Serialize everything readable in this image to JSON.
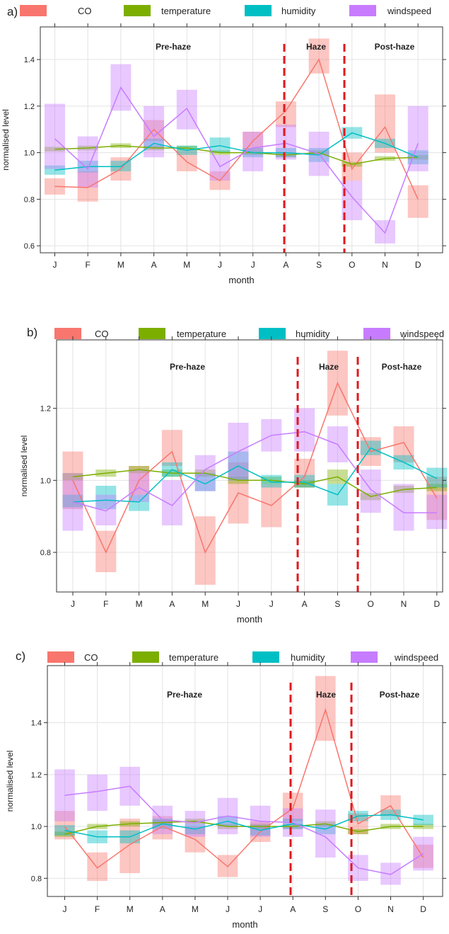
{
  "legend": [
    {
      "name": "CO",
      "color": "#F8766D"
    },
    {
      "name": "temperature",
      "color": "#7CAE00"
    },
    {
      "name": "humidity",
      "color": "#00BFC4"
    },
    {
      "name": "windspeed",
      "color": "#C77CFF"
    }
  ],
  "chart_data": [
    {
      "type": "line",
      "panel_label": "a)",
      "xlabel": "month",
      "ylabel": "normalised level",
      "categories": [
        "J",
        "F",
        "M",
        "A",
        "M",
        "J",
        "J",
        "A",
        "S",
        "O",
        "N",
        "D"
      ],
      "ylim": [
        0.57,
        1.54
      ],
      "yticks": [
        "0.6",
        "0.8",
        "1.0",
        "1.2",
        "1.4"
      ],
      "ytick_values": [
        0.6,
        0.8,
        1.0,
        1.2,
        1.4
      ],
      "grid": true,
      "period_labels": [
        "Pre-haze",
        "Haze",
        "Post-haze"
      ],
      "dividers_after_month": [
        7.7,
        9.7
      ],
      "series": [
        {
          "name": "CO",
          "values": [
            0.855,
            0.85,
            0.93,
            1.1,
            0.96,
            0.88,
            1.05,
            1.18,
            1.4,
            0.93,
            1.11,
            0.8
          ],
          "lower": [
            0.82,
            0.79,
            0.88,
            1.05,
            0.92,
            0.84,
            1.01,
            1.11,
            1.34,
            0.88,
            1.0,
            0.72
          ],
          "upper": [
            0.89,
            0.92,
            0.98,
            1.14,
            1.01,
            0.92,
            1.09,
            1.22,
            1.49,
            1.0,
            1.25,
            0.86
          ]
        },
        {
          "name": "temperature",
          "values": [
            1.015,
            1.02,
            1.03,
            1.02,
            1.02,
            1.0,
            1.0,
            0.99,
            1.0,
            0.95,
            0.975,
            0.98
          ],
          "lower": [
            1.005,
            1.01,
            1.02,
            1.01,
            1.01,
            0.99,
            0.99,
            0.98,
            0.99,
            0.94,
            0.965,
            0.97
          ],
          "upper": [
            1.025,
            1.03,
            1.04,
            1.03,
            1.03,
            1.01,
            1.01,
            1.0,
            1.01,
            0.96,
            0.985,
            0.99
          ]
        },
        {
          "name": "humidity",
          "values": [
            0.925,
            0.94,
            0.94,
            1.04,
            1.01,
            1.03,
            1.0,
            1.0,
            0.99,
            1.085,
            1.04,
            0.98
          ],
          "lower": [
            0.905,
            0.915,
            0.92,
            1.02,
            0.99,
            1.0,
            0.98,
            0.98,
            0.96,
            1.06,
            1.02,
            0.95
          ],
          "upper": [
            0.945,
            0.965,
            0.965,
            1.06,
            1.03,
            1.065,
            1.02,
            1.02,
            1.02,
            1.11,
            1.06,
            1.01
          ],
          "band_upper": [
            0.945,
            0.965,
            0.965,
            1.06,
            1.03,
            1.065,
            1.02,
            1.02,
            1.02,
            1.11,
            1.06,
            1.01
          ]
        },
        {
          "name": "windspeed",
          "values": [
            1.06,
            0.93,
            1.28,
            1.07,
            1.19,
            0.94,
            1.02,
            1.04,
            0.995,
            0.81,
            0.655,
            1.04
          ],
          "lower": [
            0.93,
            0.85,
            1.18,
            0.98,
            1.1,
            0.88,
            0.92,
            0.97,
            0.9,
            0.71,
            0.61,
            0.92
          ],
          "upper": [
            1.21,
            1.07,
            1.38,
            1.2,
            1.27,
            0.99,
            1.09,
            1.12,
            1.09,
            0.88,
            0.71,
            1.2
          ]
        }
      ]
    },
    {
      "type": "line",
      "panel_label": "b)",
      "xlabel": "month",
      "ylabel": "normalised level",
      "categories": [
        "J",
        "F",
        "M",
        "A",
        "M",
        "J",
        "J",
        "A",
        "S",
        "O",
        "N",
        "D"
      ],
      "ylim": [
        0.69,
        1.39
      ],
      "yticks": [
        "0.8",
        "1.0",
        "1.2"
      ],
      "ytick_values": [
        0.8,
        1.0,
        1.2
      ],
      "grid": true,
      "period_labels": [
        "Pre-haze",
        "Haze",
        "Post-haze"
      ],
      "dividers_after_month": [
        7.7,
        9.7
      ],
      "series": [
        {
          "name": "CO",
          "values": [
            1.0,
            0.8,
            1.0,
            1.08,
            0.8,
            0.965,
            0.93,
            1.01,
            1.27,
            1.08,
            1.105,
            0.95
          ],
          "lower": [
            0.92,
            0.745,
            0.96,
            1.04,
            0.71,
            0.88,
            0.87,
            0.98,
            1.18,
            1.04,
            1.05,
            0.89
          ],
          "upper": [
            1.08,
            0.86,
            1.04,
            1.14,
            0.9,
            1.05,
            0.99,
            1.06,
            1.36,
            1.12,
            1.15,
            1.01
          ]
        },
        {
          "name": "temperature",
          "values": [
            1.01,
            1.02,
            1.03,
            1.02,
            1.02,
            1.0,
            1.0,
            0.99,
            1.01,
            0.955,
            0.975,
            0.98
          ],
          "lower": [
            1.0,
            1.01,
            1.02,
            1.01,
            1.01,
            0.99,
            0.99,
            0.98,
            0.99,
            0.945,
            0.965,
            0.97
          ],
          "upper": [
            1.02,
            1.03,
            1.04,
            1.03,
            1.03,
            1.01,
            1.01,
            1.0,
            1.03,
            0.965,
            0.985,
            0.99
          ]
        },
        {
          "name": "humidity",
          "values": [
            0.94,
            0.945,
            0.94,
            1.03,
            0.99,
            1.04,
            0.995,
            0.995,
            0.96,
            1.09,
            1.05,
            1.005
          ],
          "lower": [
            0.925,
            0.92,
            0.915,
            1.01,
            0.97,
            1.0,
            0.98,
            0.98,
            0.93,
            1.07,
            1.03,
            0.98
          ],
          "upper": [
            0.96,
            0.985,
            0.96,
            1.05,
            1.02,
            1.08,
            1.015,
            1.015,
            0.99,
            1.11,
            1.07,
            1.035
          ]
        },
        {
          "name": "windspeed",
          "values": [
            0.94,
            0.915,
            0.98,
            0.93,
            1.03,
            1.08,
            1.125,
            1.135,
            1.1,
            0.975,
            0.91,
            0.91
          ],
          "lower": [
            0.86,
            0.875,
            0.94,
            0.875,
            0.97,
            1.0,
            1.08,
            1.08,
            1.05,
            0.91,
            0.86,
            0.865
          ],
          "upper": [
            1.02,
            0.96,
            1.03,
            1.0,
            1.07,
            1.16,
            1.17,
            1.2,
            1.15,
            1.03,
            0.99,
            0.96
          ]
        }
      ]
    },
    {
      "type": "line",
      "panel_label": "c)",
      "xlabel": "month",
      "ylabel": "normalised level",
      "categories": [
        "J",
        "F",
        "M",
        "A",
        "M",
        "J",
        "J",
        "A",
        "S",
        "O",
        "N",
        "D"
      ],
      "ylim": [
        0.73,
        1.62
      ],
      "yticks": [
        "0.8",
        "1.0",
        "1.2",
        "1.4"
      ],
      "ytick_values": [
        0.8,
        1.0,
        1.2,
        1.4
      ],
      "grid": true,
      "period_labels": [
        "Pre-haze",
        "Haze",
        "Post-haze"
      ],
      "dividers_after_month": [
        7.7,
        9.7
      ],
      "series": [
        {
          "name": "CO",
          "values": [
            1.0,
            0.84,
            0.93,
            1.0,
            0.95,
            0.845,
            0.98,
            1.07,
            1.45,
            1.01,
            1.08,
            0.88
          ],
          "lower": [
            0.95,
            0.79,
            0.82,
            0.95,
            0.9,
            0.805,
            0.94,
            1.02,
            1.33,
            0.97,
            1.04,
            0.84
          ],
          "upper": [
            1.06,
            0.9,
            1.03,
            1.04,
            1.0,
            0.89,
            1.02,
            1.13,
            1.58,
            1.05,
            1.12,
            0.93
          ]
        },
        {
          "name": "temperature",
          "values": [
            0.97,
            1.0,
            1.01,
            1.015,
            1.02,
            1.0,
            1.0,
            1.0,
            1.01,
            0.98,
            1.0,
            1.0
          ],
          "lower": [
            0.96,
            0.99,
            1.0,
            1.005,
            1.01,
            0.99,
            0.99,
            0.99,
            1.0,
            0.97,
            0.99,
            0.99
          ],
          "upper": [
            0.98,
            1.01,
            1.02,
            1.025,
            1.03,
            1.01,
            1.01,
            1.01,
            1.02,
            0.99,
            1.01,
            1.01
          ]
        },
        {
          "name": "humidity",
          "values": [
            0.985,
            0.96,
            0.96,
            1.01,
            0.99,
            1.02,
            0.985,
            1.01,
            0.99,
            1.04,
            1.045,
            1.025
          ],
          "lower": [
            0.965,
            0.935,
            0.935,
            0.99,
            0.97,
            1.0,
            0.965,
            0.99,
            0.97,
            1.02,
            1.025,
            1.005
          ],
          "upper": [
            1.005,
            0.985,
            0.985,
            1.03,
            1.01,
            1.04,
            1.005,
            1.03,
            1.01,
            1.06,
            1.065,
            1.045
          ]
        },
        {
          "name": "windspeed",
          "values": [
            1.12,
            1.135,
            1.155,
            1.025,
            1.015,
            1.04,
            1.02,
            1.015,
            0.96,
            0.84,
            0.815,
            0.895
          ],
          "lower": [
            1.02,
            1.06,
            1.08,
            0.97,
            0.96,
            0.97,
            0.96,
            0.96,
            0.88,
            0.79,
            0.775,
            0.83
          ],
          "upper": [
            1.22,
            1.2,
            1.23,
            1.08,
            1.06,
            1.11,
            1.08,
            1.07,
            1.065,
            0.89,
            0.86,
            0.96
          ]
        }
      ]
    }
  ]
}
